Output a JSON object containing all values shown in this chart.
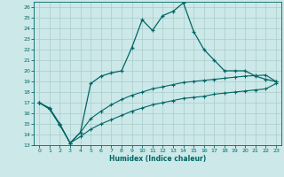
{
  "xlabel": "Humidex (Indice chaleur)",
  "bg_color": "#cce8e8",
  "line_color": "#006666",
  "grid_color": "#aacccc",
  "xlim": [
    -0.5,
    23.5
  ],
  "ylim": [
    13,
    26.5
  ],
  "x_ticks": [
    0,
    1,
    2,
    3,
    4,
    5,
    6,
    7,
    8,
    9,
    10,
    11,
    12,
    13,
    14,
    15,
    16,
    17,
    18,
    19,
    20,
    21,
    22,
    23
  ],
  "y_ticks": [
    13,
    14,
    15,
    16,
    17,
    18,
    19,
    20,
    21,
    22,
    23,
    24,
    25,
    26
  ],
  "curve1_x": [
    0,
    1,
    2,
    3,
    4,
    5,
    6,
    7,
    8,
    9,
    10,
    11,
    12,
    13,
    14,
    15,
    16,
    17,
    18,
    19,
    20,
    21,
    22,
    23
  ],
  "curve1_y": [
    17.0,
    16.5,
    15.0,
    13.2,
    14.2,
    18.8,
    19.5,
    19.8,
    20.0,
    22.2,
    24.8,
    23.8,
    25.2,
    25.6,
    26.4,
    23.7,
    22.0,
    21.0,
    20.0,
    20.0,
    20.0,
    19.5,
    19.2,
    19.0
  ],
  "curve2_x": [
    0,
    1,
    2,
    3,
    4,
    5,
    6,
    7,
    8,
    9,
    10,
    11,
    12,
    13,
    14,
    15,
    16,
    17,
    18,
    19,
    20,
    21,
    22,
    23
  ],
  "curve2_y": [
    17.0,
    16.4,
    14.9,
    13.2,
    14.2,
    15.5,
    16.2,
    16.8,
    17.3,
    17.7,
    18.0,
    18.3,
    18.5,
    18.7,
    18.9,
    19.0,
    19.1,
    19.2,
    19.3,
    19.4,
    19.5,
    19.55,
    19.6,
    19.0
  ],
  "curve3_x": [
    0,
    1,
    2,
    3,
    4,
    5,
    6,
    7,
    8,
    9,
    10,
    11,
    12,
    13,
    14,
    15,
    16,
    17,
    18,
    19,
    20,
    21,
    22,
    23
  ],
  "curve3_y": [
    17.0,
    16.4,
    14.9,
    13.2,
    13.8,
    14.5,
    15.0,
    15.4,
    15.8,
    16.2,
    16.5,
    16.8,
    17.0,
    17.2,
    17.4,
    17.5,
    17.6,
    17.8,
    17.9,
    18.0,
    18.1,
    18.2,
    18.3,
    18.8
  ]
}
